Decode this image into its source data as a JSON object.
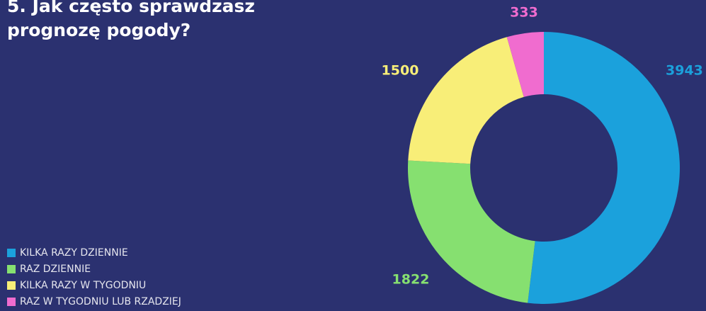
{
  "chart_data": {
    "type": "donut",
    "title": "5. Jak często sprawdzasz prognozę pogody?",
    "categories": [
      "KILKA RAZY DZIENNIE",
      "RAZ DZIENNIE",
      "KILKA RAZY W TYGODNIU",
      "RAZ W TYGODNIU LUB RZADZIEJ"
    ],
    "values": [
      3943,
      1822,
      1500,
      333
    ],
    "colors": [
      "#1ba1dc",
      "#86e070",
      "#f8ee78",
      "#f06ccf"
    ],
    "legend": "bottom-left"
  }
}
